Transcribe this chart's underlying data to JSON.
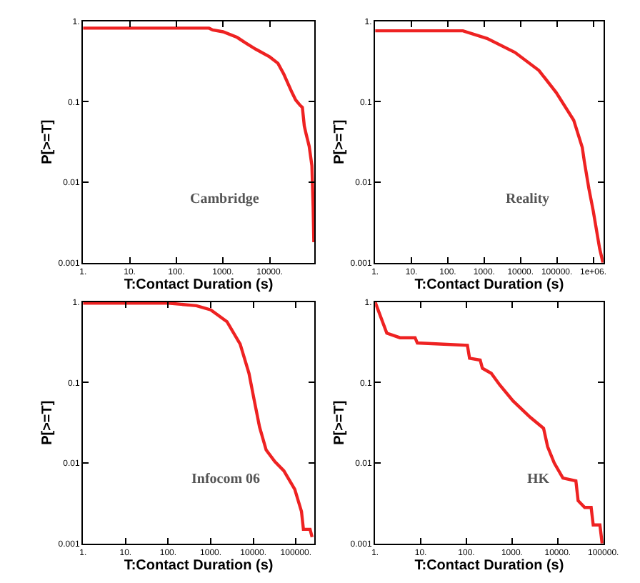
{
  "chart_data": [
    {
      "type": "line",
      "xlabel": "T:Contact Duration (s)",
      "ylabel": "P[>=T]",
      "annotations": [
        "Cambridge"
      ],
      "log": "xy",
      "marker": "none",
      "line_style": "solid",
      "xlim": [
        1,
        90000
      ],
      "ylim": [
        0.001,
        1
      ],
      "xticks": [
        {
          "value": 1,
          "label": "1."
        },
        {
          "value": 10,
          "label": "10."
        },
        {
          "value": 100,
          "label": "100."
        },
        {
          "value": 1000,
          "label": "1000."
        },
        {
          "value": 10000,
          "label": "10000."
        }
      ],
      "yticks": [
        {
          "value": 0.001,
          "label": "0.001"
        },
        {
          "value": 0.01,
          "label": "0.01"
        },
        {
          "value": 0.1,
          "label": "0.1"
        },
        {
          "value": 1,
          "label": "1."
        }
      ],
      "series": [
        {
          "color": "#ee2222",
          "x": [
            1,
            500,
            600,
            1000,
            2000,
            3000,
            5000,
            10000,
            15000,
            20000,
            30000,
            36000,
            45000,
            50000,
            55000,
            60000,
            70000,
            80000,
            85000,
            88000
          ],
          "values": [
            0.82,
            0.82,
            0.78,
            0.74,
            0.63,
            0.54,
            0.45,
            0.36,
            0.3,
            0.22,
            0.13,
            0.105,
            0.09,
            0.085,
            0.05,
            0.04,
            0.028,
            0.016,
            0.005,
            0.0018
          ]
        }
      ]
    },
    {
      "type": "line",
      "xlabel": "T:Contact Duration (s)",
      "ylabel": "P[>=T]",
      "annotations": [
        "Reality"
      ],
      "log": "xy",
      "marker": "none",
      "line_style": "solid",
      "xlim": [
        1,
        1900000
      ],
      "ylim": [
        0.001,
        1
      ],
      "xticks": [
        {
          "value": 1,
          "label": "1."
        },
        {
          "value": 10,
          "label": "10."
        },
        {
          "value": 100,
          "label": "100."
        },
        {
          "value": 1000,
          "label": "1000."
        },
        {
          "value": 10000,
          "label": "10000."
        },
        {
          "value": 100000,
          "label": "100000."
        },
        {
          "value": 1000000,
          "label": "1e+06."
        }
      ],
      "yticks": [
        {
          "value": 0.001,
          "label": "0.001"
        },
        {
          "value": 0.01,
          "label": "0.01"
        },
        {
          "value": 0.1,
          "label": "0.1"
        },
        {
          "value": 1,
          "label": "1."
        }
      ],
      "series": [
        {
          "color": "#ee2222",
          "x": [
            1,
            260,
            1200,
            7000,
            32000,
            96000,
            290000,
            500000,
            570000,
            760000,
            1000000,
            1500000,
            1850000
          ],
          "values": [
            0.76,
            0.76,
            0.61,
            0.41,
            0.245,
            0.13,
            0.059,
            0.027,
            0.018,
            0.0083,
            0.0044,
            0.0015,
            0.001
          ]
        }
      ]
    },
    {
      "type": "line",
      "xlabel": "T:Contact Duration (s)",
      "ylabel": "P[>=T]",
      "annotations": [
        "Infocom 06"
      ],
      "log": "xy",
      "marker": "none",
      "line_style": "solid",
      "xlim": [
        1,
        270000
      ],
      "ylim": [
        0.001,
        1
      ],
      "xticks": [
        {
          "value": 1,
          "label": "1."
        },
        {
          "value": 10,
          "label": "10."
        },
        {
          "value": 100,
          "label": "100."
        },
        {
          "value": 1000,
          "label": "1000."
        },
        {
          "value": 10000,
          "label": "10000."
        },
        {
          "value": 100000,
          "label": "100000."
        }
      ],
      "yticks": [
        {
          "value": 0.001,
          "label": "0.001"
        },
        {
          "value": 0.01,
          "label": "0.01"
        },
        {
          "value": 0.1,
          "label": "0.1"
        },
        {
          "value": 1,
          "label": "1."
        }
      ],
      "series": [
        {
          "color": "#ee2222",
          "x": [
            1,
            100,
            460,
            1000,
            2400,
            4900,
            7900,
            10500,
            14000,
            20000,
            32000,
            52000,
            94000,
            135000,
            150000,
            215000,
            240000
          ],
          "values": [
            0.97,
            0.97,
            0.9,
            0.8,
            0.57,
            0.3,
            0.13,
            0.06,
            0.028,
            0.0145,
            0.0104,
            0.008,
            0.0047,
            0.0025,
            0.0015,
            0.0015,
            0.0012
          ]
        }
      ]
    },
    {
      "type": "line",
      "xlabel": "T:Contact Duration (s)",
      "ylabel": "P[>=T]",
      "annotations": [
        "HK"
      ],
      "log": "xy",
      "marker": "none",
      "line_style": "solid",
      "xlim": [
        1,
        100000
      ],
      "ylim": [
        0.001,
        1
      ],
      "xticks": [
        {
          "value": 1,
          "label": "1."
        },
        {
          "value": 10,
          "label": "10."
        },
        {
          "value": 100,
          "label": "100."
        },
        {
          "value": 1000,
          "label": "1000."
        },
        {
          "value": 10000,
          "label": "10000."
        },
        {
          "value": 100000,
          "label": "100000."
        }
      ],
      "yticks": [
        {
          "value": 0.001,
          "label": "0.001"
        },
        {
          "value": 0.01,
          "label": "0.01"
        },
        {
          "value": 0.1,
          "label": "0.1"
        },
        {
          "value": 1,
          "label": "1."
        }
      ],
      "series": [
        {
          "color": "#ee2222",
          "x": [
            1,
            1.8,
            3.5,
            7.5,
            8.4,
            105,
            117,
            200,
            224,
            350,
            540,
            1050,
            2500,
            4900,
            6000,
            8400,
            13000,
            25000,
            28000,
            39000,
            54000,
            60000,
            84000,
            94000
          ],
          "values": [
            1,
            0.41,
            0.36,
            0.36,
            0.31,
            0.29,
            0.2,
            0.19,
            0.15,
            0.13,
            0.093,
            0.059,
            0.037,
            0.027,
            0.016,
            0.01,
            0.0065,
            0.006,
            0.0034,
            0.0028,
            0.0028,
            0.0017,
            0.0017,
            0.001
          ]
        }
      ]
    }
  ]
}
